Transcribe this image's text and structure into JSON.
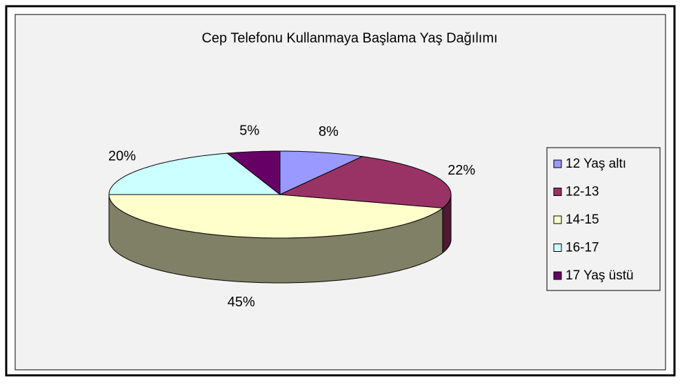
{
  "chart_data": {
    "type": "pie",
    "title": "Cep Telefonu Kullanmaya Başlama Yaş Dağılımı",
    "categories": [
      "12 Yaş altı",
      "12-13",
      "14-15",
      "16-17",
      "17 Yaş üstü"
    ],
    "values": [
      8,
      22,
      45,
      20,
      5
    ],
    "value_labels": [
      "8%",
      "22%",
      "45%",
      "20%",
      "5%"
    ],
    "colors": [
      "#9999ff",
      "#993366",
      "#ffffcc",
      "#ccffff",
      "#660066"
    ],
    "legend": "right"
  }
}
